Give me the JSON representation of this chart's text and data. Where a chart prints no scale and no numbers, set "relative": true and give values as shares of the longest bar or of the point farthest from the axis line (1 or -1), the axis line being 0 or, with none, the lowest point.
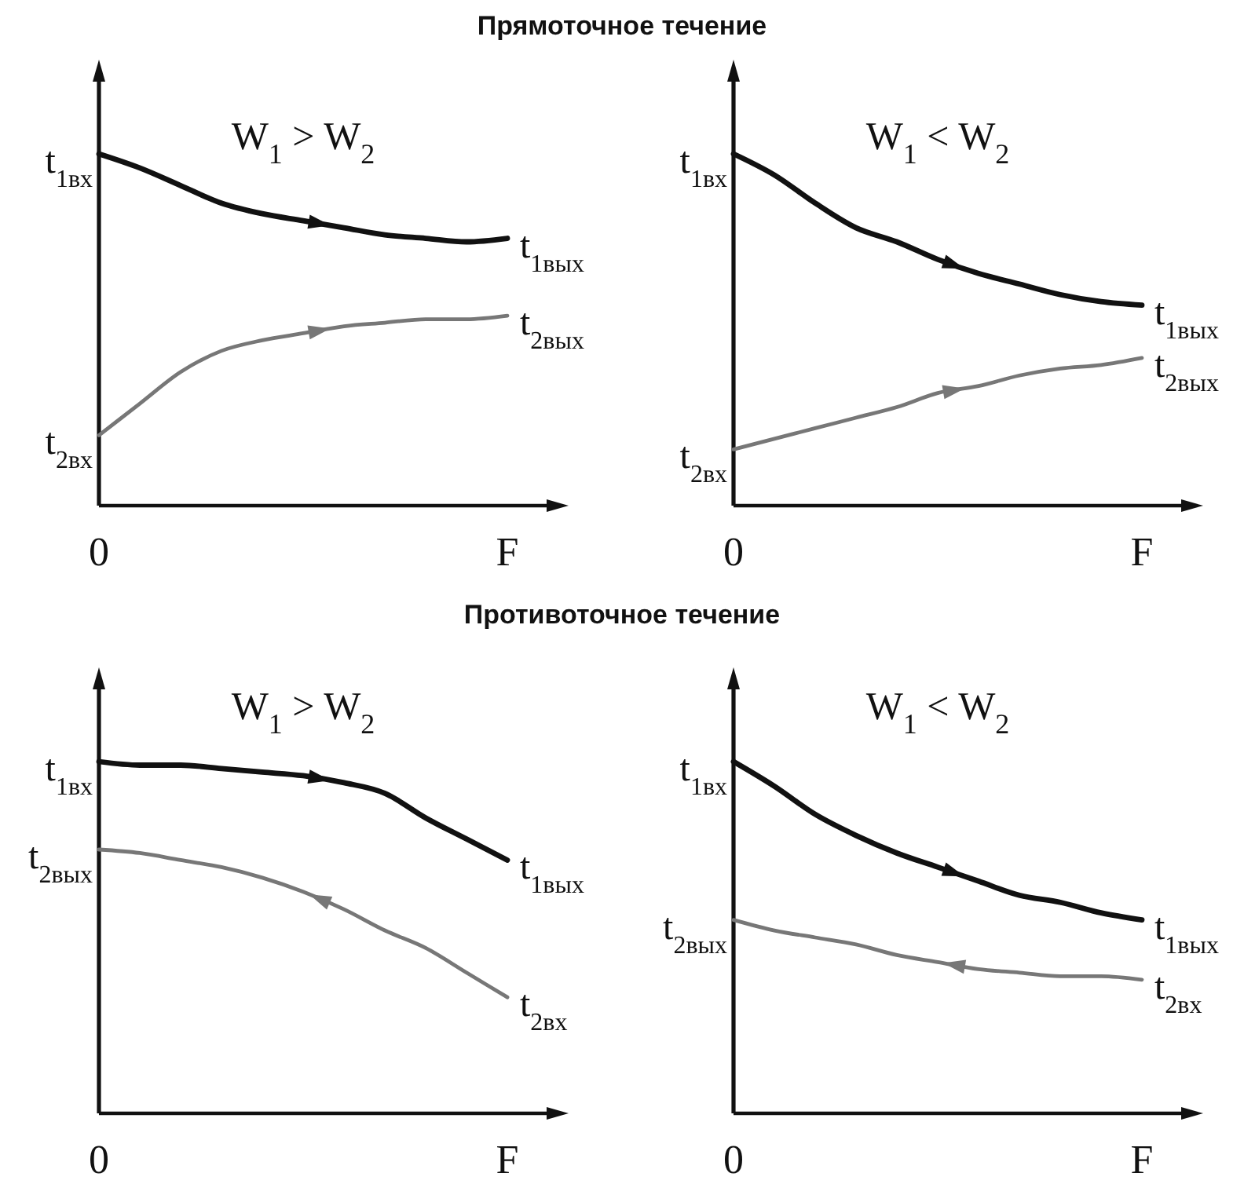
{
  "chart_data": [
    {
      "type": "line",
      "title": "Прямоточное течение",
      "subtitle": "W$_{1}$ > W$_{2}$",
      "relative": true,
      "categories": [
        "0",
        null,
        null,
        null,
        null,
        null,
        null,
        null,
        null,
        null,
        "F"
      ],
      "series": [
        {
          "color": "#111111",
          "values": [
            1,
            0.96,
            0.91,
            0.86,
            0.83,
            0.81,
            0.79,
            0.77,
            0.76,
            0.75,
            0.76
          ]
        },
        {
          "color": "#777777",
          "values": [
            0.2,
            0.29,
            0.38,
            0.44,
            0.47,
            0.49,
            0.51,
            0.52,
            0.53,
            0.53,
            0.54
          ]
        }
      ],
      "annotations": [
        {
          "text": "t$_{1вх}$",
          "x": "0",
          "y": 1
        },
        {
          "text": "t$_{2вх}$",
          "x": "0",
          "y": 0.2
        },
        {
          "text": "t$_{1вых}$",
          "x": "F",
          "y": 0.76
        },
        {
          "text": "t$_{2вых}$",
          "x": "F",
          "y": 0.54
        }
      ]
    },
    {
      "type": "line",
      "subtitle": "W$_{1}$ < W$_{2}$",
      "relative": true,
      "categories": [
        "0",
        null,
        null,
        null,
        null,
        null,
        null,
        null,
        null,
        null,
        "F"
      ],
      "series": [
        {
          "color": "#111111",
          "values": [
            1,
            0.94,
            0.86,
            0.79,
            0.75,
            0.7,
            0.66,
            0.63,
            0.6,
            0.58,
            0.57
          ]
        },
        {
          "color": "#777777",
          "values": [
            0.16,
            0.19,
            0.22,
            0.25,
            0.28,
            0.32,
            0.34,
            0.37,
            0.39,
            0.4,
            0.42
          ]
        }
      ],
      "annotations": [
        {
          "text": "t$_{1вх}$",
          "x": "0",
          "y": 1
        },
        {
          "text": "t$_{2вх}$",
          "x": "0",
          "y": 0.16
        },
        {
          "text": "t$_{1вых}$",
          "x": "F",
          "y": 0.57
        },
        {
          "text": "t$_{2вых}$",
          "x": "F",
          "y": 0.42
        }
      ]
    },
    {
      "type": "line",
      "title": "Противоточное течение",
      "subtitle": "W$_{1}$ > W$_{2}$",
      "relative": true,
      "categories": [
        "0",
        null,
        null,
        null,
        null,
        null,
        null,
        null,
        null,
        null,
        "F"
      ],
      "series": [
        {
          "color": "#111111",
          "values": [
            1,
            0.99,
            0.99,
            0.98,
            0.97,
            0.96,
            0.94,
            0.91,
            0.84,
            0.78,
            0.72
          ]
        },
        {
          "color": "#777777",
          "values": [
            0.75,
            0.74,
            0.72,
            0.7,
            0.67,
            0.63,
            0.58,
            0.52,
            0.47,
            0.4,
            0.33
          ]
        }
      ],
      "annotations": [
        {
          "text": "t$_{1вх}$",
          "x": "0",
          "y": 1
        },
        {
          "text": "t$_{2вых}$",
          "x": "0",
          "y": 0.75
        },
        {
          "text": "t$_{1вых}$",
          "x": "F",
          "y": 0.72
        },
        {
          "text": "t$_{2вх}$",
          "x": "F",
          "y": 0.33
        }
      ]
    },
    {
      "type": "line",
      "subtitle": "W$_{1}$ < W$_{2}$",
      "relative": true,
      "categories": [
        "0",
        null,
        null,
        null,
        null,
        null,
        null,
        null,
        null,
        null,
        "F"
      ],
      "series": [
        {
          "color": "#111111",
          "values": [
            1,
            0.93,
            0.85,
            0.79,
            0.74,
            0.7,
            0.66,
            0.62,
            0.6,
            0.57,
            0.55
          ]
        },
        {
          "color": "#777777",
          "values": [
            0.55,
            0.52,
            0.5,
            0.48,
            0.45,
            0.43,
            0.41,
            0.4,
            0.39,
            0.39,
            0.38
          ]
        }
      ],
      "annotations": [
        {
          "text": "t$_{1вх}$",
          "x": "0",
          "y": 1
        },
        {
          "text": "t$_{2вых}$",
          "x": "0",
          "y": 0.55
        },
        {
          "text": "t$_{1вых}$",
          "x": "F",
          "y": 0.55
        },
        {
          "text": "t$_{2вх}$",
          "x": "F",
          "y": 0.38
        }
      ]
    }
  ]
}
